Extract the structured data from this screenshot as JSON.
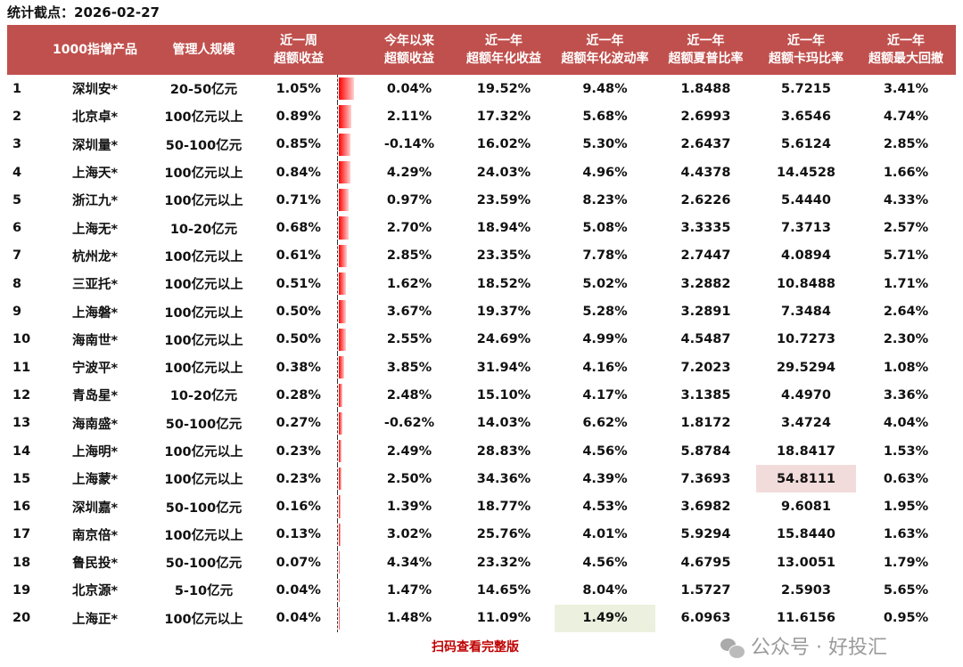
{
  "title": "统计截点：2026-02-27",
  "headers": [
    "",
    "1000指增产品",
    "管理人规模",
    "近一周\n超额收益",
    "",
    "今年以来\n超额收益",
    "近一年\n超额年化收益",
    "近一年\n超额年化波动率",
    "近一年\n超额夏普比率",
    "近一年\n超额卡玛比率",
    "近一年\n超额最大回撤"
  ],
  "rows": [
    {
      "rank": "1",
      "name": "深圳安*",
      "scale": "20-50亿元",
      "week": "1.05%",
      "week_value": 1.05,
      "ytd": "0.04%",
      "ann": "19.52%",
      "vol": "9.48%",
      "sharpe": "1.8488",
      "calmar": "5.7215",
      "mdd": "3.41%"
    },
    {
      "rank": "2",
      "name": "北京卓*",
      "scale": "100亿元以上",
      "week": "0.89%",
      "week_value": 0.89,
      "ytd": "2.11%",
      "ann": "17.32%",
      "vol": "5.68%",
      "sharpe": "2.6993",
      "calmar": "3.6546",
      "mdd": "4.74%"
    },
    {
      "rank": "3",
      "name": "深圳量*",
      "scale": "50-100亿元",
      "week": "0.85%",
      "week_value": 0.85,
      "ytd": "-0.14%",
      "ann": "16.02%",
      "vol": "5.30%",
      "sharpe": "2.6437",
      "calmar": "5.6124",
      "mdd": "2.85%"
    },
    {
      "rank": "4",
      "name": "上海天*",
      "scale": "100亿元以上",
      "week": "0.84%",
      "week_value": 0.84,
      "ytd": "4.29%",
      "ann": "24.03%",
      "vol": "4.96%",
      "sharpe": "4.4378",
      "calmar": "14.4528",
      "mdd": "1.66%"
    },
    {
      "rank": "5",
      "name": "浙江九*",
      "scale": "100亿元以上",
      "week": "0.71%",
      "week_value": 0.71,
      "ytd": "0.97%",
      "ann": "23.59%",
      "vol": "8.23%",
      "sharpe": "2.6226",
      "calmar": "5.4440",
      "mdd": "4.33%"
    },
    {
      "rank": "6",
      "name": "上海无*",
      "scale": "10-20亿元",
      "week": "0.68%",
      "week_value": 0.68,
      "ytd": "2.70%",
      "ann": "18.94%",
      "vol": "5.08%",
      "sharpe": "3.3335",
      "calmar": "7.3713",
      "mdd": "2.57%"
    },
    {
      "rank": "7",
      "name": "杭州龙*",
      "scale": "100亿元以上",
      "week": "0.61%",
      "week_value": 0.61,
      "ytd": "2.85%",
      "ann": "23.35%",
      "vol": "7.78%",
      "sharpe": "2.7447",
      "calmar": "4.0894",
      "mdd": "5.71%"
    },
    {
      "rank": "8",
      "name": "三亚托*",
      "scale": "100亿元以上",
      "week": "0.51%",
      "week_value": 0.51,
      "ytd": "1.62%",
      "ann": "18.52%",
      "vol": "5.02%",
      "sharpe": "3.2882",
      "calmar": "10.8488",
      "mdd": "1.71%"
    },
    {
      "rank": "9",
      "name": "上海磐*",
      "scale": "100亿元以上",
      "week": "0.50%",
      "week_value": 0.5,
      "ytd": "3.67%",
      "ann": "19.37%",
      "vol": "5.28%",
      "sharpe": "3.2891",
      "calmar": "7.3484",
      "mdd": "2.64%"
    },
    {
      "rank": "10",
      "name": "海南世*",
      "scale": "100亿元以上",
      "week": "0.50%",
      "week_value": 0.5,
      "ytd": "2.55%",
      "ann": "24.69%",
      "vol": "4.99%",
      "sharpe": "4.5487",
      "calmar": "10.7273",
      "mdd": "2.30%"
    },
    {
      "rank": "11",
      "name": "宁波平*",
      "scale": "100亿元以上",
      "week": "0.38%",
      "week_value": 0.38,
      "ytd": "3.85%",
      "ann": "31.94%",
      "vol": "4.16%",
      "sharpe": "7.2023",
      "calmar": "29.5294",
      "mdd": "1.08%"
    },
    {
      "rank": "12",
      "name": "青岛星*",
      "scale": "10-20亿元",
      "week": "0.28%",
      "week_value": 0.28,
      "ytd": "2.48%",
      "ann": "15.10%",
      "vol": "4.17%",
      "sharpe": "3.1385",
      "calmar": "4.4970",
      "mdd": "3.36%"
    },
    {
      "rank": "13",
      "name": "海南盛*",
      "scale": "50-100亿元",
      "week": "0.27%",
      "week_value": 0.27,
      "ytd": "-0.62%",
      "ann": "14.03%",
      "vol": "6.62%",
      "sharpe": "1.8172",
      "calmar": "3.4724",
      "mdd": "4.04%"
    },
    {
      "rank": "14",
      "name": "上海明*",
      "scale": "100亿元以上",
      "week": "0.23%",
      "week_value": 0.23,
      "ytd": "2.49%",
      "ann": "28.83%",
      "vol": "4.56%",
      "sharpe": "5.8784",
      "calmar": "18.8417",
      "mdd": "1.53%"
    },
    {
      "rank": "15",
      "name": "上海蒙*",
      "scale": "100亿元以上",
      "week": "0.23%",
      "week_value": 0.23,
      "ytd": "2.50%",
      "ann": "34.36%",
      "vol": "4.39%",
      "sharpe": "7.3693",
      "calmar": "54.8111",
      "mdd": "0.63%",
      "highlight": "calmar"
    },
    {
      "rank": "16",
      "name": "深圳嘉*",
      "scale": "50-100亿元",
      "week": "0.16%",
      "week_value": 0.16,
      "ytd": "1.39%",
      "ann": "18.77%",
      "vol": "4.53%",
      "sharpe": "3.6982",
      "calmar": "9.6081",
      "mdd": "1.95%"
    },
    {
      "rank": "17",
      "name": "南京倍*",
      "scale": "100亿元以上",
      "week": "0.13%",
      "week_value": 0.13,
      "ytd": "3.02%",
      "ann": "25.76%",
      "vol": "4.01%",
      "sharpe": "5.9294",
      "calmar": "15.8440",
      "mdd": "1.63%"
    },
    {
      "rank": "18",
      "name": "鲁民投*",
      "scale": "50-100亿元",
      "week": "0.07%",
      "week_value": 0.07,
      "ytd": "4.34%",
      "ann": "23.32%",
      "vol": "4.56%",
      "sharpe": "4.6795",
      "calmar": "13.0051",
      "mdd": "1.79%"
    },
    {
      "rank": "19",
      "name": "北京源*",
      "scale": "5-10亿元",
      "week": "0.04%",
      "week_value": 0.04,
      "ytd": "1.47%",
      "ann": "14.65%",
      "vol": "8.04%",
      "sharpe": "1.5727",
      "calmar": "2.5903",
      "mdd": "5.65%"
    },
    {
      "rank": "20",
      "name": "上海正*",
      "scale": "100亿元以上",
      "week": "0.04%",
      "week_value": 0.04,
      "ytd": "1.48%",
      "ann": "11.09%",
      "vol": "1.49%",
      "sharpe": "6.0963",
      "calmar": "11.6156",
      "mdd": "0.95%",
      "highlight": "vol"
    }
  ],
  "footer_link": "扫码查看完整版",
  "watermark": "公众号 · 好投汇",
  "colors": {
    "header_bg": "#c0504d",
    "bar": "#ff0000",
    "highlight_max": "#f2dcdb",
    "highlight_min": "#ebf1de",
    "link": "#c00000"
  }
}
